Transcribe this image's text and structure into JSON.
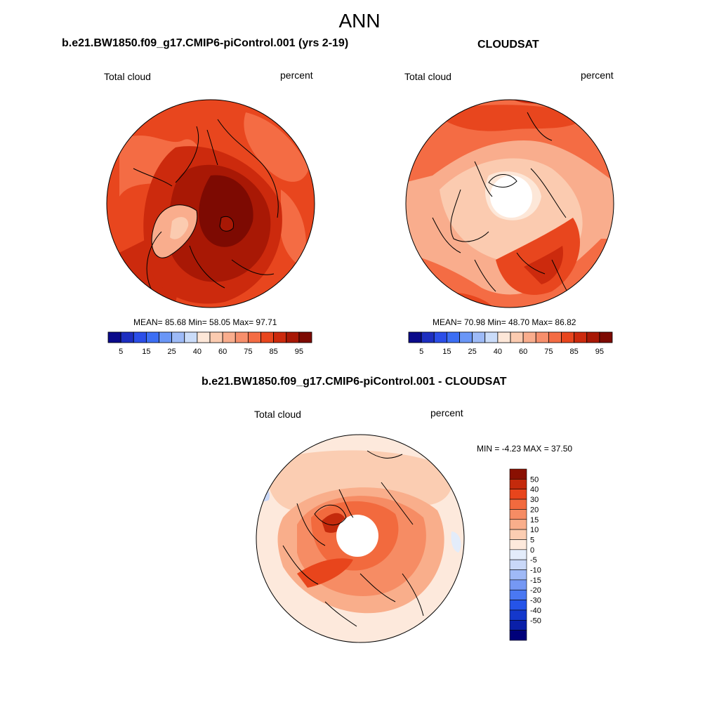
{
  "figure": {
    "title": "ANN",
    "variable": "Total cloud",
    "units": "percent"
  },
  "panels": [
    {
      "id": "model",
      "title": "b.e21.BW1850.f09_g17.CMIP6-piControl.001 (yrs 2-19)",
      "left_label": "Total cloud",
      "right_label": "percent",
      "stats_text": "MEAN=  85.68  Min=  58.05  Max=  97.71"
    },
    {
      "id": "obs",
      "title": "CLOUDSAT",
      "left_label": "Total cloud",
      "right_label": "percent",
      "stats_text": "MEAN=  70.98  Min=  48.70  Max=  86.82"
    },
    {
      "id": "diff",
      "title": "b.e21.BW1850.f09_g17.CMIP6-piControl.001 - CLOUDSAT",
      "left_label": "Total cloud",
      "right_label": "percent",
      "stats_text": "MIN =  -4.23 MAX =  37.50"
    }
  ],
  "colors": {
    "abs_scale": [
      "#0a0a8a",
      "#1d2ec0",
      "#2b4ee8",
      "#3c6ef4",
      "#6a96f6",
      "#9dbaf7",
      "#cadcf9",
      "#fde7d8",
      "#fbcbb0",
      "#f9ad8d",
      "#f78f6c",
      "#f46c44",
      "#e8461e",
      "#cc2a0d",
      "#a81805",
      "#7d0a02"
    ],
    "diff_scale": [
      "#00007a",
      "#0a1fa8",
      "#1438cc",
      "#2554e8",
      "#4a78f2",
      "#7598f4",
      "#9fb9f6",
      "#c9d8f8",
      "#e3ecfa",
      "#fde9dc",
      "#fbcdb2",
      "#f9ae8b",
      "#f68c64",
      "#f26a3e",
      "#e8451c",
      "#c42a0c",
      "#8a1002"
    ]
  },
  "chart_data": [
    {
      "type": "polar_contour_map",
      "panel": "model",
      "projection": "north-polar-stereographic",
      "title": "b.e21.BW1850.f09_g17.CMIP6-piControl.001 (yrs 2-19)",
      "variable": "Total cloud",
      "units": "percent",
      "mean": 85.68,
      "min": 58.05,
      "max": 97.71,
      "colorbar": {
        "orientation": "horizontal",
        "levels": [
          5,
          10,
          15,
          20,
          25,
          30,
          40,
          50,
          60,
          70,
          75,
          80,
          85,
          90,
          95
        ],
        "tick_labels": [
          "5",
          "15",
          "25",
          "40",
          "60",
          "75",
          "85",
          "95"
        ]
      }
    },
    {
      "type": "polar_contour_map",
      "panel": "obs",
      "projection": "north-polar-stereographic",
      "title": "CLOUDSAT",
      "variable": "Total cloud",
      "units": "percent",
      "mean": 70.98,
      "min": 48.7,
      "max": 86.82,
      "colorbar": {
        "orientation": "horizontal",
        "levels": [
          5,
          10,
          15,
          20,
          25,
          30,
          40,
          50,
          60,
          70,
          75,
          80,
          85,
          90,
          95
        ],
        "tick_labels": [
          "5",
          "15",
          "25",
          "40",
          "60",
          "75",
          "85",
          "95"
        ]
      }
    },
    {
      "type": "polar_contour_map",
      "panel": "diff",
      "projection": "north-polar-stereographic",
      "title": "b.e21.BW1850.f09_g17.CMIP6-piControl.001 - CLOUDSAT",
      "variable": "Total cloud",
      "units": "percent",
      "min": -4.23,
      "max": 37.5,
      "colorbar": {
        "orientation": "vertical",
        "levels": [
          -50,
          -40,
          -30,
          -20,
          -15,
          -10,
          -5,
          0,
          5,
          10,
          15,
          20,
          30,
          40,
          50
        ],
        "tick_labels": [
          "50",
          "40",
          "30",
          "20",
          "15",
          "10",
          "5",
          "0",
          "-5",
          "-10",
          "-15",
          "-20",
          "-30",
          "-40",
          "-50"
        ]
      }
    }
  ]
}
